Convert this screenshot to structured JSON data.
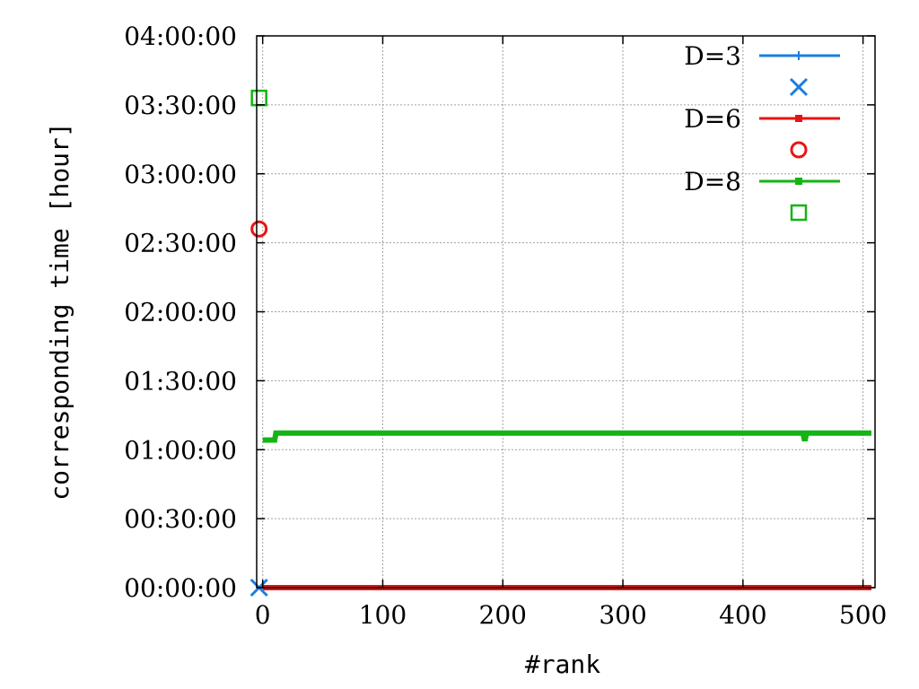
{
  "chart_data": {
    "type": "line",
    "title": "",
    "xlabel": "#rank",
    "ylabel": "corresponding time [hour]",
    "xlim": [
      -5,
      510
    ],
    "ylim": [
      0,
      4
    ],
    "x_ticks": [
      0,
      100,
      200,
      300,
      400,
      500
    ],
    "y_ticks": [
      0,
      0.5,
      1,
      1.5,
      2,
      2.5,
      3,
      3.5,
      4
    ],
    "y_tick_labels": [
      "00:00:00",
      "00:30:00",
      "01:00:00",
      "01:30:00",
      "02:00:00",
      "02:30:00",
      "03:00:00",
      "03:30:00",
      "04:00:00"
    ],
    "grid": true,
    "legend_position": "top-right",
    "series": [
      {
        "name": "D=3",
        "color": "#1a7fe0",
        "marker": "plus",
        "x": [
          0,
          507
        ],
        "y": [
          0,
          0
        ],
        "extra_point": {
          "x": -3,
          "y": 0,
          "marker": "x"
        }
      },
      {
        "name": "D=6",
        "color": "#e81414",
        "marker": "square-filled",
        "x": [
          0,
          507
        ],
        "y": [
          0,
          0
        ],
        "extra_point": {
          "x": -3,
          "y": 2.6,
          "marker": "circle"
        }
      },
      {
        "name": "D=8",
        "color": "#14b414",
        "marker": "square-filled",
        "x": [
          0,
          10,
          11,
          450,
          451,
          452,
          453,
          454,
          507
        ],
        "y": [
          1.07,
          1.07,
          1.12,
          1.12,
          1.08,
          1.08,
          1.12,
          1.12,
          1.12
        ],
        "extra_point": {
          "x": -3,
          "y": 3.55,
          "marker": "square-open"
        }
      }
    ]
  }
}
